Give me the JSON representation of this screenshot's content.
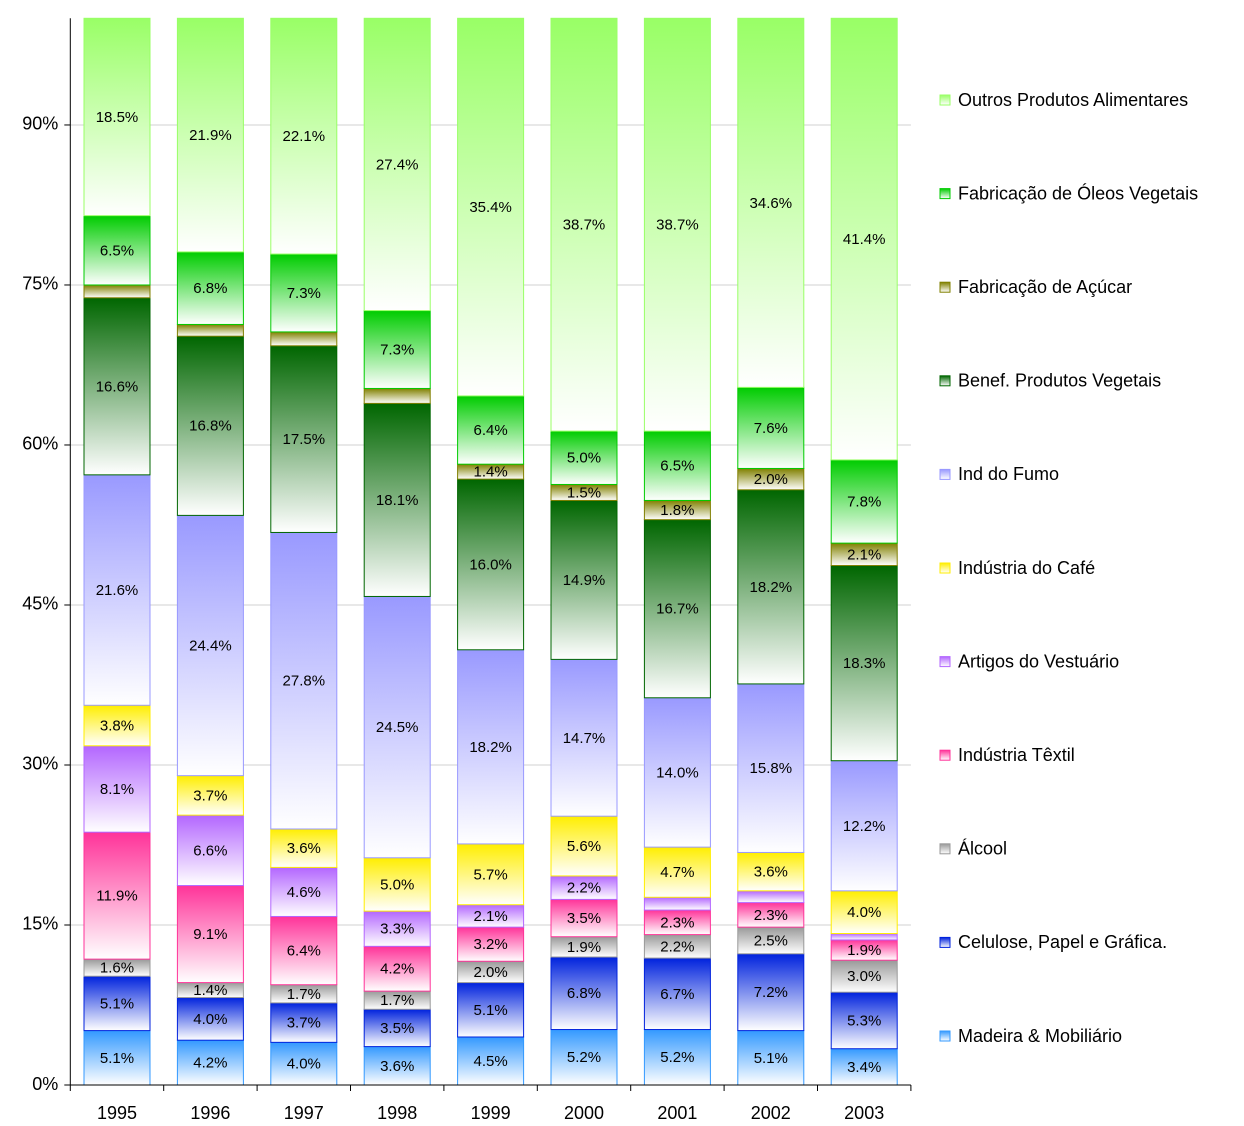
{
  "chart_data": {
    "type": "stacked_bar_100",
    "categories": [
      "1995",
      "1996",
      "1997",
      "1998",
      "1999",
      "2000",
      "2001",
      "2002",
      "2003"
    ],
    "ylim": [
      0,
      100
    ],
    "yticks": [
      {
        "value": 0,
        "label": "0%"
      },
      {
        "value": 15,
        "label": "15%"
      },
      {
        "value": 30,
        "label": "30%"
      },
      {
        "value": 45,
        "label": "45%"
      },
      {
        "value": 60,
        "label": "60%"
      },
      {
        "value": 75,
        "label": "75%"
      },
      {
        "value": 90,
        "label": "90%"
      }
    ],
    "grid": true,
    "legend": "right",
    "series": [
      {
        "name": "Madeira & Mobiliário",
        "color": "#3399ff",
        "values": [
          5.1,
          4.2,
          4.0,
          3.6,
          4.5,
          5.2,
          5.2,
          5.1,
          3.4
        ],
        "value_labels": [
          "5.1%",
          "4.2%",
          "4.0%",
          "3.6%",
          "4.5%",
          "5.2%",
          "5.2%",
          "5.1%",
          "3.4%"
        ]
      },
      {
        "name": "Celulose, Papel e Gráfica.",
        "color": "#0022dd",
        "values": [
          5.1,
          4.0,
          3.7,
          3.5,
          5.1,
          6.8,
          6.7,
          7.2,
          5.3
        ],
        "value_labels": [
          "5.1%",
          "4.0%",
          "3.7%",
          "3.5%",
          "5.1%",
          "6.8%",
          "6.7%",
          "7.2%",
          "5.3%"
        ]
      },
      {
        "name": "Álcool",
        "color": "#999999",
        "values": [
          1.6,
          1.4,
          1.7,
          1.7,
          2.0,
          1.9,
          2.2,
          2.5,
          3.0
        ],
        "value_labels": [
          "1.6%",
          "1.4%",
          "1.7%",
          "1.7%",
          "2.0%",
          "1.9%",
          "2.2%",
          "2.5%",
          "3.0%"
        ]
      },
      {
        "name": "Indústria Têxtil",
        "color": "#ff3399",
        "values": [
          11.9,
          9.1,
          6.4,
          4.2,
          3.2,
          3.5,
          2.3,
          2.3,
          1.9
        ],
        "value_labels": [
          "11.9%",
          "9.1%",
          "6.4%",
          "4.2%",
          "3.2%",
          "3.5%",
          "2.3%",
          "2.3%",
          "1.9%"
        ]
      },
      {
        "name": "Artigos do Vestuário",
        "color": "#b366ff",
        "values": [
          8.1,
          6.6,
          4.6,
          3.3,
          2.1,
          2.2,
          1.2,
          1.1,
          0.6
        ],
        "value_labels": [
          "8.1%",
          "6.6%",
          "4.6%",
          "3.3%",
          "2.1%",
          "2.2%",
          null,
          null,
          null
        ]
      },
      {
        "name": "Indústria do Café",
        "color": "#ffee00",
        "values": [
          3.8,
          3.7,
          3.6,
          5.0,
          5.7,
          5.6,
          4.7,
          3.6,
          4.0
        ],
        "value_labels": [
          "3.8%",
          "3.7%",
          "3.6%",
          "5.0%",
          "5.7%",
          "5.6%",
          "4.7%",
          "3.6%",
          "4.0%"
        ]
      },
      {
        "name": "Ind do Fumo",
        "color": "#9999ff",
        "values": [
          21.6,
          24.4,
          27.8,
          24.5,
          18.2,
          14.7,
          14.0,
          15.8,
          12.2
        ],
        "value_labels": [
          "21.6%",
          "24.4%",
          "27.8%",
          "24.5%",
          "18.2%",
          "14.7%",
          "14.0%",
          "15.8%",
          "12.2%"
        ]
      },
      {
        "name": "Benef. Produtos Vegetais",
        "color": "#006600",
        "values": [
          16.6,
          16.8,
          17.5,
          18.1,
          16.0,
          14.9,
          16.7,
          18.2,
          18.3
        ],
        "value_labels": [
          "16.6%",
          "16.8%",
          "17.5%",
          "18.1%",
          "16.0%",
          "14.9%",
          "16.7%",
          "18.2%",
          "18.3%"
        ]
      },
      {
        "name": "Fabricação de Açúcar",
        "color": "#808000",
        "values": [
          1.2,
          1.1,
          1.3,
          1.4,
          1.4,
          1.5,
          1.8,
          2.0,
          2.1
        ],
        "value_labels": [
          null,
          null,
          null,
          null,
          "1.4%",
          "1.5%",
          "1.8%",
          "2.0%",
          "2.1%"
        ]
      },
      {
        "name": "Fabricação de Óleos Vegetais",
        "color": "#00cc00",
        "values": [
          6.5,
          6.8,
          7.3,
          7.3,
          6.4,
          5.0,
          6.5,
          7.6,
          7.8
        ],
        "value_labels": [
          "6.5%",
          "6.8%",
          "7.3%",
          "7.3%",
          "6.4%",
          "5.0%",
          "6.5%",
          "7.6%",
          "7.8%"
        ]
      },
      {
        "name": "Outros Produtos Alimentares",
        "color": "#99ff66",
        "values": [
          18.5,
          21.9,
          22.1,
          27.4,
          35.4,
          38.7,
          38.7,
          34.6,
          41.4
        ],
        "value_labels": [
          "18.5%",
          "21.9%",
          "22.1%",
          "27.4%",
          "35.4%",
          "38.7%",
          "38.7%",
          "34.6%",
          "41.4%"
        ]
      }
    ]
  }
}
